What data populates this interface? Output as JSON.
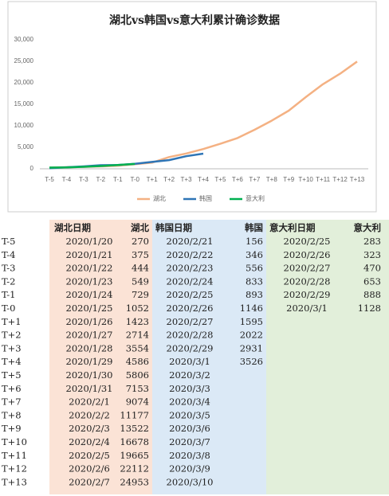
{
  "chart_data": {
    "type": "line",
    "title": "湖北vs韩国vs意大利累计确诊数据",
    "categories": [
      "T-5",
      "T-4",
      "T-3",
      "T-2",
      "T-1",
      "T-0",
      "T+1",
      "T+2",
      "T+3",
      "T+4",
      "T+5",
      "T+6",
      "T+7",
      "T+8",
      "T+9",
      "T+10",
      "T+11",
      "T+12",
      "T+13"
    ],
    "series": [
      {
        "name": "湖北",
        "color": "#f4b183",
        "values": [
          270,
          375,
          444,
          549,
          729,
          1052,
          1423,
          2714,
          3554,
          4586,
          5806,
          7153,
          9074,
          11177,
          13522,
          16678,
          19665,
          22112,
          24953
        ]
      },
      {
        "name": "韩国",
        "color": "#2e75b6",
        "values": [
          156,
          346,
          556,
          833,
          893,
          1146,
          1595,
          2022,
          2931,
          3526,
          null,
          null,
          null,
          null,
          null,
          null,
          null,
          null,
          null
        ]
      },
      {
        "name": "意大利",
        "color": "#00b050",
        "values": [
          283,
          323,
          470,
          653,
          888,
          1128,
          null,
          null,
          null,
          null,
          null,
          null,
          null,
          null,
          null,
          null,
          null,
          null,
          null
        ]
      }
    ],
    "ylim": [
      0,
      30000
    ],
    "yticks": [
      0,
      {
        "value": 5000,
        "label": "5,000"
      },
      {
        "value": 10000,
        "label": "10,000"
      },
      {
        "value": 15000,
        "label": "15,000"
      },
      {
        "value": 20000,
        "label": "20,000"
      },
      {
        "value": 25000,
        "label": "25,000"
      },
      {
        "value": 30000,
        "label": "30,000"
      }
    ],
    "grid": false,
    "legend": "bottom"
  },
  "table": {
    "header": [
      "湖北日期",
      "湖北",
      "韩国日期",
      "韩国",
      "意大利日期",
      "意大利"
    ],
    "hubei_dates": [
      "2020/1/20",
      "2020/1/21",
      "2020/1/22",
      "2020/1/23",
      "2020/1/24",
      "2020/1/25",
      "2020/1/26",
      "2020/1/27",
      "2020/1/28",
      "2020/1/29",
      "2020/1/30",
      "2020/1/31",
      "2020/2/1",
      "2020/2/2",
      "2020/2/3",
      "2020/2/4",
      "2020/2/5",
      "2020/2/6",
      "2020/2/7"
    ],
    "korea_dates": [
      "2020/2/21",
      "2020/2/22",
      "2020/2/23",
      "2020/2/24",
      "2020/2/25",
      "2020/2/26",
      "2020/2/27",
      "2020/2/28",
      "2020/2/29",
      "2020/3/1",
      "2020/3/2",
      "2020/3/3",
      "2020/3/4",
      "2020/3/5",
      "2020/3/6",
      "2020/3/7",
      "2020/3/8",
      "2020/3/9",
      "2020/3/10"
    ],
    "italy_dates": [
      "2020/2/25",
      "2020/2/26",
      "2020/2/27",
      "2020/2/28",
      "2020/2/29",
      "2020/3/1"
    ]
  }
}
